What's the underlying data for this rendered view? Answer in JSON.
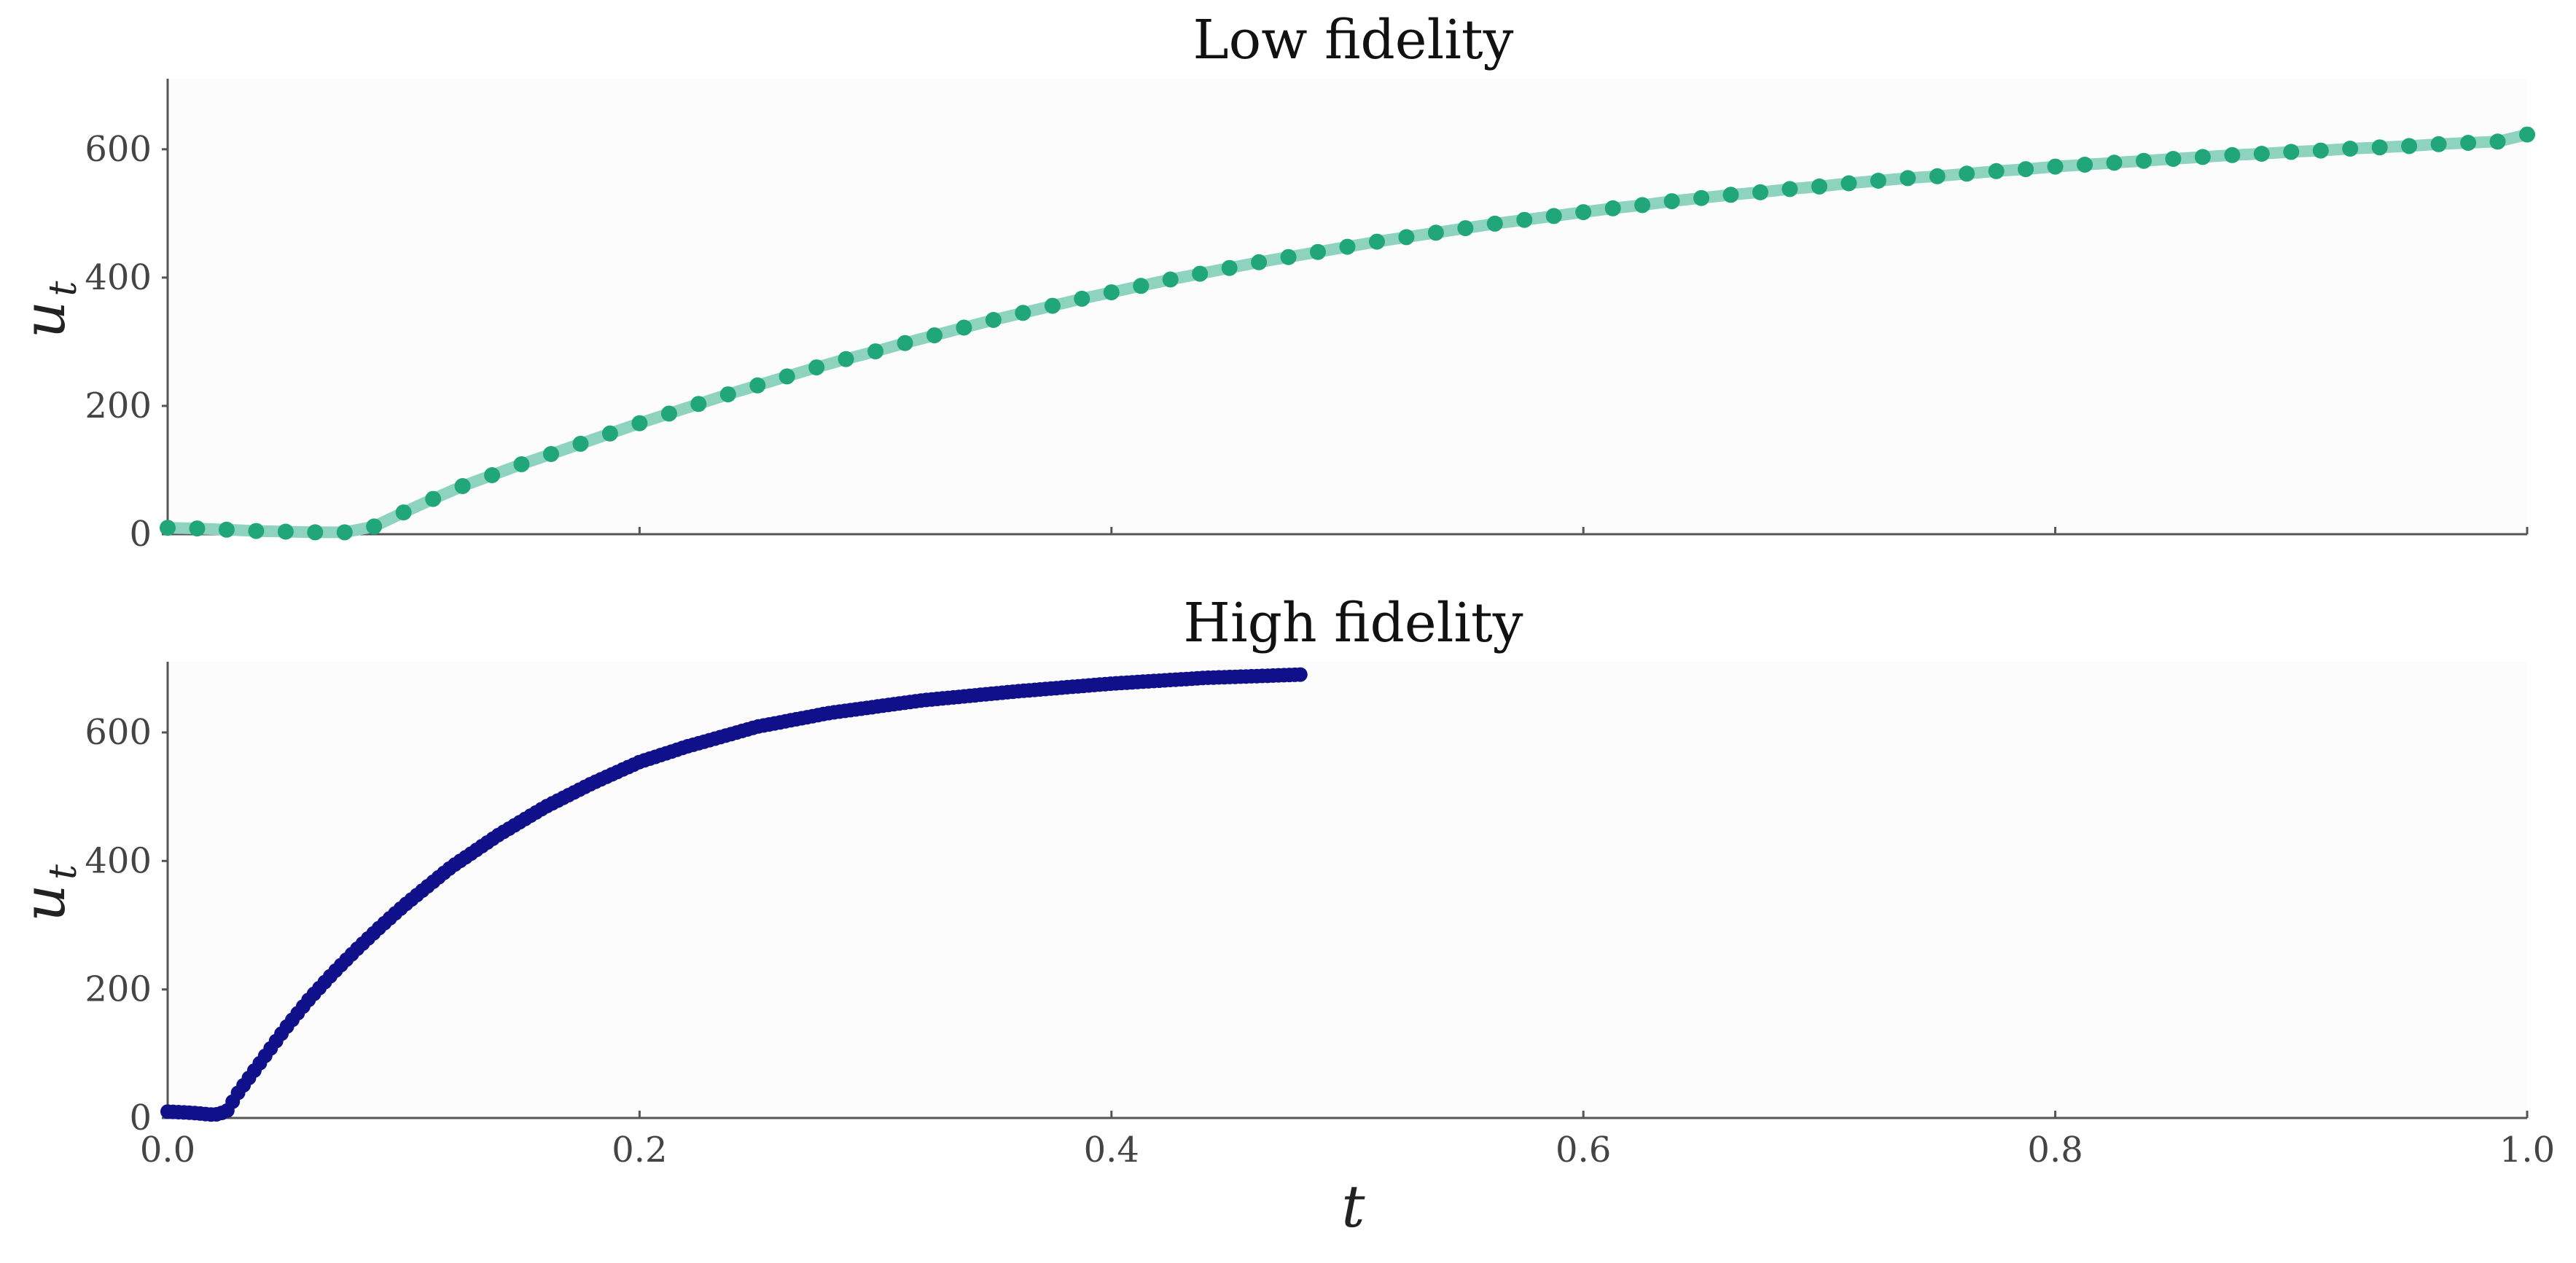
{
  "figure": {
    "xlabel": "t",
    "ylabel": "u",
    "ylabel_subscript": "t"
  },
  "chart_data": [
    {
      "type": "line",
      "title": "Low fidelity",
      "xlabel": "",
      "ylabel": "u_t",
      "xlim": [
        0.0,
        1.0
      ],
      "ylim": [
        0,
        710
      ],
      "yticks": [
        0,
        200,
        400,
        600
      ],
      "ytick_labels": [
        "0",
        "200",
        "400",
        "600"
      ],
      "xticks": [
        0.0,
        0.2,
        0.4,
        0.6,
        0.8,
        1.0
      ],
      "xtick_labels_visible": false,
      "grid": false,
      "colors": {
        "line": "#8dd3bd",
        "marker": "#21a67a"
      },
      "series": [
        {
          "x": [
            0.0,
            0.0125,
            0.025,
            0.0375,
            0.05,
            0.0625,
            0.075,
            0.0875,
            0.1,
            0.1125,
            0.125,
            0.1375,
            0.15,
            0.1625,
            0.175,
            0.1875,
            0.2,
            0.2125,
            0.225,
            0.2375,
            0.25,
            0.2625,
            0.275,
            0.2875,
            0.3,
            0.3125,
            0.325,
            0.3375,
            0.35,
            0.3625,
            0.375,
            0.3875,
            0.4,
            0.4125,
            0.425,
            0.4375,
            0.45,
            0.4625,
            0.475,
            0.4875,
            0.5,
            0.5125,
            0.525,
            0.5375,
            0.55,
            0.5625,
            0.575,
            0.5875,
            0.6,
            0.6125,
            0.625,
            0.6375,
            0.65,
            0.6625,
            0.675,
            0.6875,
            0.7,
            0.7125,
            0.725,
            0.7375,
            0.75,
            0.7625,
            0.775,
            0.7875,
            0.8,
            0.8125,
            0.825,
            0.8375,
            0.85,
            0.8625,
            0.875,
            0.8875,
            0.9,
            0.9125,
            0.925,
            0.9375,
            0.95,
            0.9625,
            0.975,
            0.9875,
            1.0
          ],
          "y": [
            10,
            9,
            7,
            5,
            4,
            3,
            3,
            12,
            34,
            55,
            75,
            92,
            109,
            125,
            141,
            157,
            173,
            188,
            203,
            218,
            232,
            246,
            260,
            273,
            285,
            298,
            310,
            322,
            334,
            345,
            356,
            367,
            377,
            387,
            397,
            406,
            415,
            424,
            432,
            440,
            448,
            456,
            463,
            470,
            477,
            484,
            490,
            496,
            502,
            508,
            513,
            519,
            524,
            529,
            533,
            538,
            542,
            547,
            551,
            555,
            558,
            562,
            566,
            569,
            573,
            576,
            579,
            582,
            585,
            588,
            591,
            593,
            596,
            598,
            601,
            603,
            605,
            608,
            610,
            612,
            623
          ]
        }
      ]
    },
    {
      "type": "line",
      "title": "High fidelity",
      "xlabel": "t",
      "ylabel": "u_t",
      "xlim": [
        0.0,
        1.0
      ],
      "ylim": [
        0,
        710
      ],
      "yticks": [
        0,
        200,
        400,
        600
      ],
      "ytick_labels": [
        "0",
        "200",
        "400",
        "600"
      ],
      "xticks": [
        0.0,
        0.2,
        0.4,
        0.6,
        0.8,
        1.0
      ],
      "xtick_labels": [
        "0.0",
        "0.2",
        "0.4",
        "0.6",
        "0.8",
        "1.0"
      ],
      "grid": false,
      "colors": {
        "line": "#10108a",
        "marker": "#10108a"
      },
      "series": [
        {
          "x_start": 0.0,
          "x_end": 0.48,
          "curve": [
            [
              0.0,
              10
            ],
            [
              0.01,
              8
            ],
            [
              0.02,
              5
            ],
            [
              0.025,
              10
            ],
            [
              0.03,
              40
            ],
            [
              0.04,
              90
            ],
            [
              0.05,
              140
            ],
            [
              0.06,
              185
            ],
            [
              0.07,
              225
            ],
            [
              0.08,
              262
            ],
            [
              0.09,
              297
            ],
            [
              0.1,
              330
            ],
            [
              0.12,
              390
            ],
            [
              0.14,
              440
            ],
            [
              0.16,
              484
            ],
            [
              0.18,
              521
            ],
            [
              0.2,
              554
            ],
            [
              0.22,
              578
            ],
            [
              0.25,
              609
            ],
            [
              0.28,
              630
            ],
            [
              0.32,
              650
            ],
            [
              0.36,
              664
            ],
            [
              0.4,
              676
            ],
            [
              0.44,
              685
            ],
            [
              0.48,
              690
            ]
          ]
        }
      ]
    }
  ]
}
